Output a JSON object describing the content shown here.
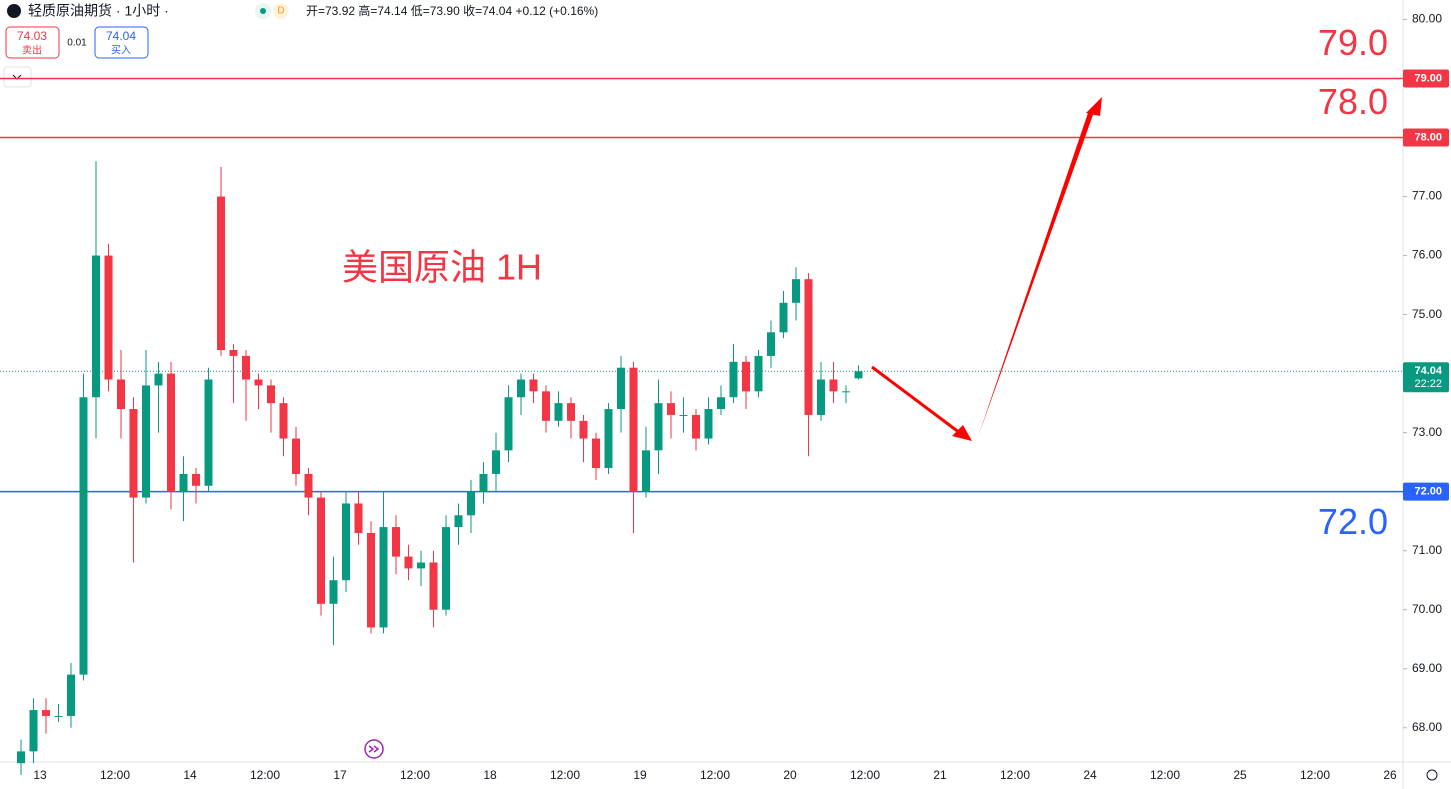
{
  "chart_data": {
    "type": "candlestick",
    "title": "轻质原油期货 · 1小时 ·",
    "ohlc_text": "开=73.92 高=74.14 低=73.90 收=74.04 +0.12 (+0.16%)",
    "sell": {
      "price": "74.03",
      "label": "卖出"
    },
    "spread": "0.01",
    "buy": {
      "price": "74.04",
      "label": "买入"
    },
    "annotation": "美国原油 1H",
    "up_color": "#089981",
    "down_color": "#f23645",
    "open": [
      67.4,
      67.6,
      68.3,
      68.2,
      68.2,
      68.9,
      73.6,
      76.0,
      73.9,
      73.4,
      71.9,
      73.8,
      74.0,
      72.0,
      72.3,
      72.1,
      77.0,
      74.4,
      74.3,
      73.9,
      73.8,
      73.5,
      72.9,
      72.3,
      71.9,
      70.1,
      70.5,
      71.8,
      71.3,
      69.7,
      71.4,
      70.9,
      70.7,
      70.8,
      70.0,
      71.4,
      71.6,
      72.0,
      72.3,
      72.7,
      73.6,
      73.9,
      73.7,
      73.2,
      73.5,
      73.2,
      72.9,
      72.4,
      73.4,
      74.1,
      72.0,
      72.7,
      73.5,
      73.3,
      73.3,
      72.9,
      73.4,
      73.6,
      74.2,
      73.7,
      74.3,
      74.7,
      75.2,
      75.6,
      73.3,
      73.9,
      73.7,
      73.92
    ],
    "high": [
      67.8,
      68.5,
      68.5,
      68.4,
      69.1,
      74.0,
      77.6,
      76.2,
      74.4,
      73.6,
      74.4,
      74.2,
      74.2,
      72.6,
      72.4,
      74.1,
      77.5,
      74.5,
      74.4,
      74.0,
      73.9,
      73.6,
      73.1,
      72.4,
      72.0,
      70.9,
      72.0,
      72.0,
      71.5,
      72.0,
      71.6,
      71.1,
      71.0,
      71.0,
      71.6,
      71.8,
      72.2,
      72.5,
      73.0,
      73.8,
      74.0,
      74.0,
      73.8,
      73.7,
      73.6,
      73.3,
      73.0,
      73.5,
      74.3,
      74.2,
      73.1,
      73.9,
      73.7,
      73.6,
      73.4,
      73.6,
      73.8,
      74.5,
      74.3,
      74.4,
      74.9,
      75.4,
      75.8,
      75.7,
      74.2,
      74.2,
      73.8,
      74.14
    ],
    "low": [
      67.2,
      67.4,
      67.9,
      68.1,
      68.0,
      68.8,
      72.9,
      73.7,
      72.9,
      70.8,
      71.8,
      73.0,
      71.7,
      71.5,
      71.8,
      72.0,
      74.3,
      73.5,
      73.2,
      73.4,
      73.0,
      72.6,
      72.1,
      71.6,
      69.9,
      69.4,
      70.3,
      71.1,
      69.6,
      69.6,
      70.6,
      70.5,
      70.4,
      69.7,
      69.9,
      71.1,
      71.3,
      71.8,
      72.0,
      72.5,
      73.3,
      73.5,
      73.0,
      73.1,
      72.9,
      72.5,
      72.2,
      72.3,
      73.0,
      71.3,
      71.9,
      72.3,
      72.9,
      73.0,
      72.7,
      72.8,
      73.3,
      73.5,
      73.4,
      73.6,
      74.1,
      74.6,
      74.9,
      72.6,
      73.2,
      73.5,
      73.5,
      73.9
    ],
    "close": [
      67.6,
      68.3,
      68.2,
      68.2,
      68.9,
      73.6,
      76.0,
      73.9,
      73.4,
      71.9,
      73.8,
      74.0,
      72.0,
      72.3,
      72.1,
      73.9,
      74.4,
      74.3,
      73.9,
      73.8,
      73.5,
      72.9,
      72.3,
      71.9,
      70.1,
      70.5,
      71.8,
      71.3,
      69.7,
      71.4,
      70.9,
      70.7,
      70.8,
      70.0,
      71.4,
      71.6,
      72.0,
      72.3,
      72.7,
      73.6,
      73.9,
      73.7,
      73.2,
      73.5,
      73.2,
      72.9,
      72.4,
      73.4,
      74.1,
      72.0,
      72.7,
      73.5,
      73.3,
      73.3,
      72.9,
      73.4,
      73.6,
      74.2,
      73.7,
      74.3,
      74.7,
      75.2,
      75.6,
      73.3,
      73.9,
      73.7,
      73.7,
      74.04
    ],
    "x_labels": [
      "13",
      "12:00",
      "14",
      "12:00",
      "17",
      "12:00",
      "18",
      "12:00",
      "19",
      "12:00",
      "20",
      "12:00",
      "21",
      "12:00",
      "24",
      "12:00",
      "25",
      "12:00",
      "26"
    ],
    "ylim": [
      67.42,
      80.33
    ],
    "yticks": [
      {
        "value": 68,
        "label": "68.00"
      },
      {
        "value": 69,
        "label": "69.00"
      },
      {
        "value": 70,
        "label": "70.00"
      },
      {
        "value": 71,
        "label": "71.00"
      },
      {
        "value": 72,
        "label": "72.00"
      },
      {
        "value": 73,
        "label": "73.00"
      },
      {
        "value": 74,
        "label": "74.00"
      },
      {
        "value": 75,
        "label": "75.00"
      },
      {
        "value": 76,
        "label": "76.00"
      },
      {
        "value": 77,
        "label": "77.00"
      },
      {
        "value": 78,
        "label": "78.00"
      },
      {
        "value": 79,
        "label": "79.00"
      },
      {
        "value": 80,
        "label": "80.00"
      }
    ],
    "levels": [
      {
        "value": 79,
        "label": "79.0",
        "tag": "79.00",
        "color": "#f23645"
      },
      {
        "value": 78,
        "label": "78.0",
        "tag": "78.00",
        "color": "#f23645"
      },
      {
        "value": 72,
        "label": "72.0",
        "tag": "72.00",
        "color": "#2962ff"
      }
    ],
    "last": {
      "value": 74.04,
      "tag": "74.04",
      "countdown": "22:22"
    }
  }
}
